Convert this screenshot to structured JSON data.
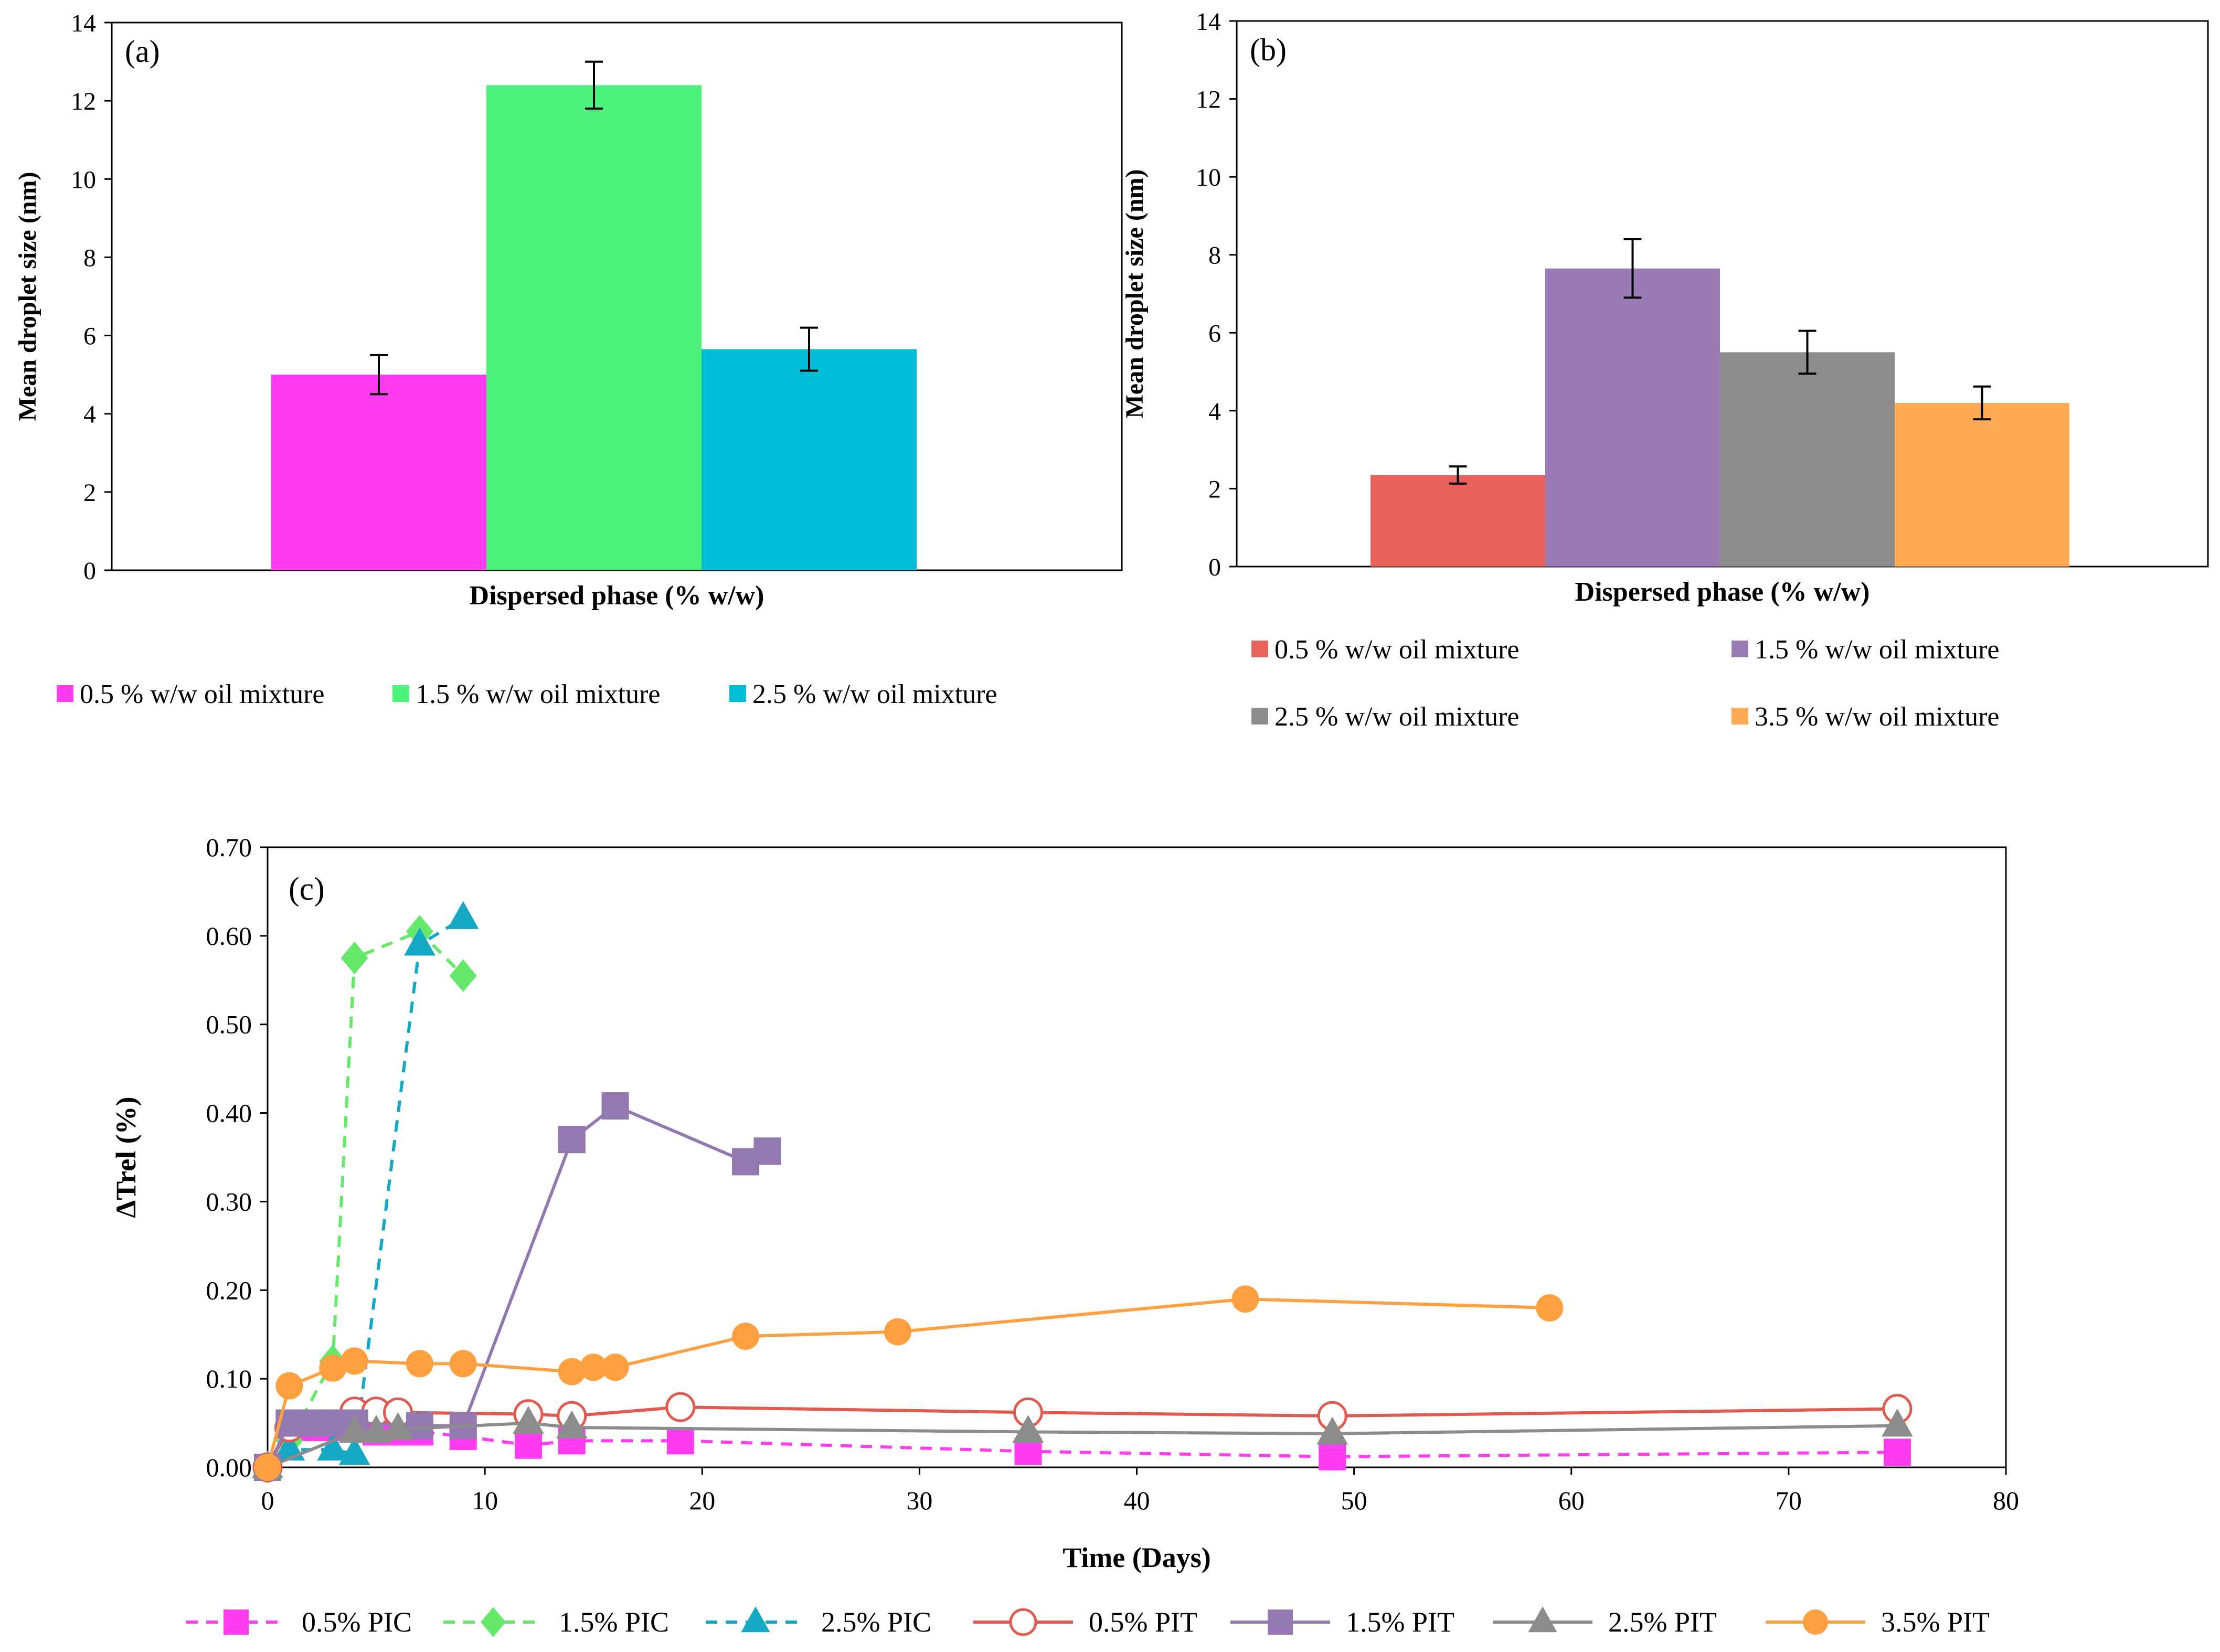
{
  "chart_data": [
    {
      "id": "a",
      "panel_label": "(a)",
      "type": "bar",
      "xlabel": "Dispersed phase (% w/w)",
      "ylabel": "Mean droplet size (nm)",
      "ylim": [
        0,
        14
      ],
      "yticks": [
        "0",
        "2",
        "4",
        "6",
        "8",
        "10",
        "12",
        "14"
      ],
      "legend_position": "bottom",
      "series": [
        {
          "name": "0.5 % w/w oil mixture",
          "value": 5.0,
          "error": 0.5,
          "color": "#ff3cf0"
        },
        {
          "name": "1.5 % w/w oil mixture",
          "value": 12.4,
          "error": 0.6,
          "color": "#4cf27a"
        },
        {
          "name": "2.5 % w/w oil mixture",
          "value": 5.65,
          "error": 0.55,
          "color": "#00bcd4"
        }
      ]
    },
    {
      "id": "b",
      "panel_label": "(b)",
      "type": "bar",
      "xlabel": "Dispersed phase (% w/w)",
      "ylabel": "Mean droplet size (nm)",
      "ylim": [
        0,
        14
      ],
      "yticks": [
        "0",
        "2",
        "4",
        "6",
        "8",
        "10",
        "12",
        "14"
      ],
      "legend_position": "bottom",
      "series": [
        {
          "name": "0.5 % w/w oil mixture",
          "value": 2.35,
          "error": 0.22,
          "color": "#e8625d"
        },
        {
          "name": "1.5 % w/w oil mixture",
          "value": 7.65,
          "error": 0.75,
          "color": "#9b7bb5"
        },
        {
          "name": "2.5 % w/w oil mixture",
          "value": 5.5,
          "error": 0.55,
          "color": "#8c8c8c"
        },
        {
          "name": "3.5 % w/w oil mixture",
          "value": 4.2,
          "error": 0.42,
          "color": "#ffaa55"
        }
      ]
    },
    {
      "id": "c",
      "panel_label": "(c)",
      "type": "line",
      "xlabel": "Time (Days)",
      "ylabel": "ΔTrel (%)",
      "xlim": [
        0,
        80
      ],
      "ylim": [
        0,
        0.7
      ],
      "xticks": [
        "0",
        "10",
        "20",
        "30",
        "40",
        "50",
        "60",
        "70",
        "80"
      ],
      "yticks": [
        "0.00",
        "0.10",
        "0.20",
        "0.30",
        "0.40",
        "0.50",
        "0.60",
        "0.70"
      ],
      "legend_position": "bottom",
      "series": [
        {
          "name": "0.5% PIC",
          "color": "#ff3cf0",
          "marker": "square",
          "dashed": true,
          "x": [
            0,
            1,
            2,
            3,
            4,
            5,
            6,
            7,
            9,
            12,
            14,
            19,
            35,
            49,
            75
          ],
          "y": [
            0.0,
            0.045,
            0.045,
            0.045,
            0.045,
            0.04,
            0.04,
            0.04,
            0.035,
            0.025,
            0.03,
            0.03,
            0.018,
            0.012,
            0.017
          ]
        },
        {
          "name": "1.5% PIC",
          "color": "#66e86a",
          "marker": "diamond",
          "dashed": true,
          "x": [
            0,
            1,
            3,
            4,
            7,
            9
          ],
          "y": [
            0.0,
            0.03,
            0.12,
            0.575,
            0.605,
            0.555
          ]
        },
        {
          "name": "2.5% PIC",
          "color": "#14a8c4",
          "marker": "triangle",
          "dashed": true,
          "x": [
            0,
            1,
            3,
            4,
            7,
            9
          ],
          "y": [
            0.0,
            0.02,
            0.02,
            0.015,
            0.59,
            0.62
          ]
        },
        {
          "name": "0.5% PIT",
          "color": "#e05a50",
          "marker": "circle-open",
          "dashed": false,
          "x": [
            0,
            1,
            4,
            5,
            6,
            12,
            14,
            19,
            35,
            49,
            75
          ],
          "y": [
            0.0,
            0.045,
            0.063,
            0.063,
            0.062,
            0.06,
            0.058,
            0.068,
            0.062,
            0.058,
            0.066
          ]
        },
        {
          "name": "1.5% PIT",
          "color": "#9479b0",
          "marker": "square",
          "dashed": false,
          "x": [
            0,
            1,
            2,
            3,
            4,
            7,
            9,
            14,
            16,
            22,
            23
          ],
          "y": [
            0.0,
            0.05,
            0.05,
            0.05,
            0.05,
            0.047,
            0.047,
            0.37,
            0.408,
            0.345,
            0.357
          ]
        },
        {
          "name": "2.5% PIT",
          "color": "#8c8c8c",
          "marker": "triangle",
          "dashed": false,
          "x": [
            0,
            4,
            5,
            6,
            12,
            14,
            35,
            49,
            75
          ],
          "y": [
            0.0,
            0.04,
            0.04,
            0.043,
            0.05,
            0.045,
            0.04,
            0.038,
            0.047
          ]
        },
        {
          "name": "3.5% PIT",
          "color": "#ffa040",
          "marker": "circle",
          "dashed": false,
          "x": [
            0,
            1,
            3,
            4,
            7,
            9,
            14,
            15,
            16,
            22,
            29,
            45,
            59
          ],
          "y": [
            0.0,
            0.092,
            0.112,
            0.12,
            0.117,
            0.117,
            0.108,
            0.113,
            0.113,
            0.148,
            0.153,
            0.19,
            0.18
          ]
        }
      ]
    }
  ]
}
